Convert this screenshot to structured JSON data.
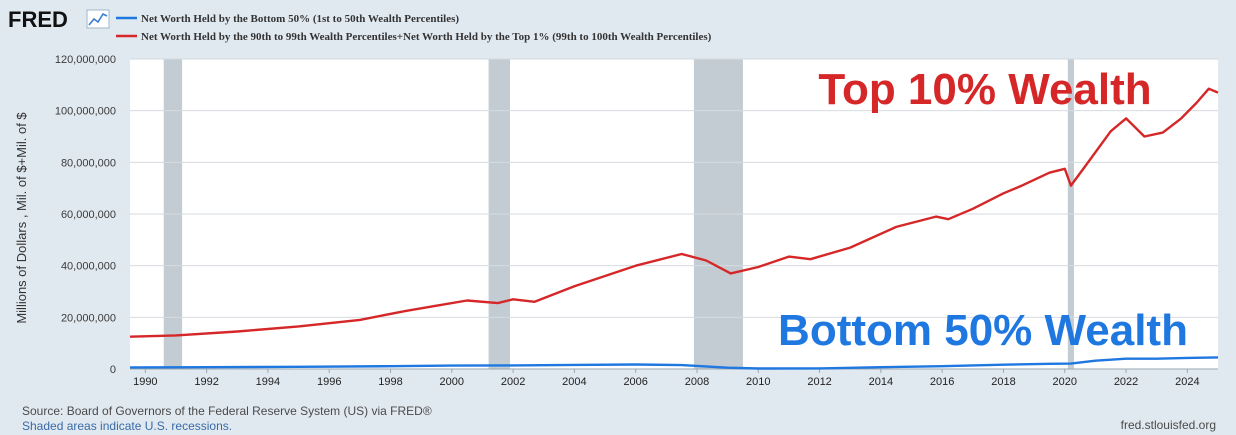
{
  "brand": {
    "logo_text": "FRED",
    "logo_icon": "line-chart-icon"
  },
  "colors": {
    "bottom50": "#1f77e0",
    "top10": "#d62728",
    "recession": "#c3ccd3",
    "grid": "#d4dbe1",
    "plot_bg": "#ffffff",
    "page_bg": "#e1e9f0",
    "source_text": "#3a6aa6"
  },
  "footer": {
    "source": "Source: Board of Governors of the Federal Reserve System (US) via FRED®",
    "shaded_note": "Shaded areas indicate U.S. recessions.",
    "site": "fred.stlouisfed.org"
  },
  "chart_data": {
    "type": "line",
    "xlabel": "",
    "ylabel": "Millions of Dollars , Mil. of $+Mil. of $",
    "xlim": [
      1989.5,
      2025.0
    ],
    "ylim": [
      0,
      120000000
    ],
    "x_ticks": [
      "1990",
      "1992",
      "1994",
      "1996",
      "1998",
      "2000",
      "2002",
      "2004",
      "2006",
      "2008",
      "2010",
      "2012",
      "2014",
      "2016",
      "2018",
      "2020",
      "2022",
      "2024"
    ],
    "y_ticks": [
      "0",
      "20,000,000",
      "40,000,000",
      "60,000,000",
      "80,000,000",
      "100,000,000",
      "120,000,000"
    ],
    "y_tick_values": [
      0,
      20000000,
      40000000,
      60000000,
      80000000,
      100000000,
      120000000
    ],
    "grid": true,
    "legend_position": "top-left",
    "recessions": [
      [
        1990.6,
        1991.2
      ],
      [
        2001.2,
        2001.9
      ],
      [
        2007.9,
        2009.5
      ],
      [
        2020.1,
        2020.3
      ]
    ],
    "annotations": [
      {
        "text": "Top 10% Wealth",
        "series": "top10"
      },
      {
        "text": "Bottom 50% Wealth",
        "series": "bottom50"
      }
    ],
    "series": [
      {
        "key": "bottom50",
        "name": "Net Worth Held by the Bottom 50% (1st to 50th Wealth Percentiles)",
        "color": "#1f77e0",
        "x": [
          1989.5,
          1992,
          1995,
          1998,
          2000,
          2002,
          2004,
          2006,
          2007.5,
          2009,
          2010,
          2012,
          2014,
          2016,
          2018,
          2019.5,
          2020.2,
          2021,
          2022,
          2023,
          2024,
          2025
        ],
        "y": [
          600000,
          700000,
          850000,
          1100000,
          1300000,
          1400000,
          1600000,
          1750000,
          1500000,
          500000,
          200000,
          250000,
          700000,
          1100000,
          1650000,
          2000000,
          2100000,
          3200000,
          4000000,
          4000000,
          4300000,
          4500000
        ]
      },
      {
        "key": "top10",
        "name": "Net Worth Held by the 90th to 99th Wealth Percentiles+Net Worth Held by the Top 1% (99th to 100th Wealth Percentiles)",
        "color": "#d62728",
        "x": [
          1989.5,
          1991,
          1993,
          1995,
          1997,
          1998.5,
          1999.5,
          2000.5,
          2001.5,
          2002,
          2002.7,
          2004,
          2006,
          2007.5,
          2008.3,
          2009.1,
          2010,
          2011,
          2011.7,
          2013,
          2014.5,
          2015.8,
          2016.2,
          2017,
          2018,
          2018.6,
          2019.5,
          2020.0,
          2020.2,
          2020.7,
          2021.5,
          2022.0,
          2022.6,
          2023.2,
          2023.8,
          2024.3,
          2024.7,
          2025.0
        ],
        "y": [
          12500000,
          13000000,
          14500000,
          16500000,
          19000000,
          22500000,
          24500000,
          26500000,
          25500000,
          27000000,
          26000000,
          32000000,
          40000000,
          44500000,
          42000000,
          37000000,
          39500000,
          43500000,
          42500000,
          47000000,
          55000000,
          59000000,
          58000000,
          62000000,
          68000000,
          71000000,
          76000000,
          77500000,
          71000000,
          79000000,
          92000000,
          97000000,
          90000000,
          91500000,
          97000000,
          103000000,
          108500000,
          107000000
        ]
      }
    ]
  }
}
